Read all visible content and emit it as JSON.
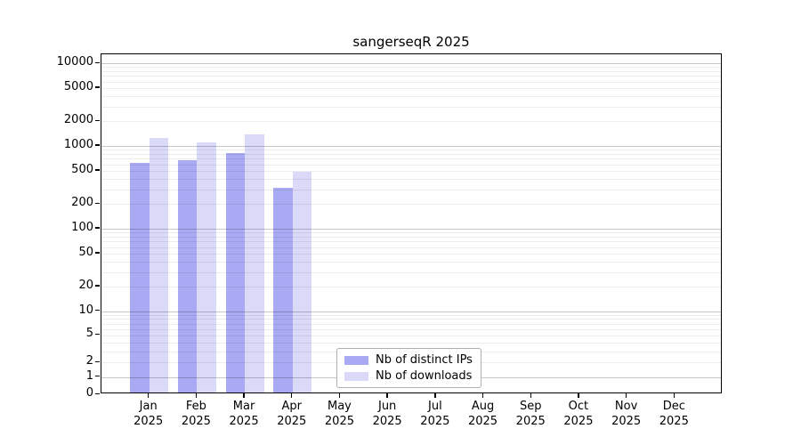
{
  "title": "sangerseqR 2025",
  "colors": {
    "distinct_ips_bar": "#a9a9f4",
    "downloads_bar": "#dadaf8",
    "axis": "#000000",
    "grid_major": "#cccccc",
    "grid_minor": "#ededed",
    "legend_border": "#b0b0b0"
  },
  "chart_data": {
    "type": "bar",
    "title": "sangerseqR 2025",
    "categories": [
      "Jan 2025",
      "Feb 2025",
      "Mar 2025",
      "Apr 2025",
      "May 2025",
      "Jun 2025",
      "Jul 2025",
      "Aug 2025",
      "Sep 2025",
      "Oct 2025",
      "Nov 2025",
      "Dec 2025"
    ],
    "series": [
      {
        "name": "Nb of distinct IPs",
        "color": "#a9a9f4",
        "values": [
          590,
          640,
          780,
          295,
          null,
          null,
          null,
          null,
          null,
          null,
          null,
          null
        ]
      },
      {
        "name": "Nb of downloads",
        "color": "#dadaf8",
        "values": [
          1200,
          1060,
          1300,
          460,
          null,
          null,
          null,
          null,
          null,
          null,
          null,
          null
        ]
      }
    ],
    "xlabel": "",
    "ylabel": "",
    "yscale": "asinh(value/2)",
    "yticks": [
      0,
      1,
      2,
      5,
      10,
      20,
      50,
      100,
      200,
      500,
      1000,
      2000,
      5000,
      10000
    ],
    "ylim": [
      0,
      12800
    ],
    "grid": "horizontal, minor and major",
    "legend_position": "lower center"
  }
}
